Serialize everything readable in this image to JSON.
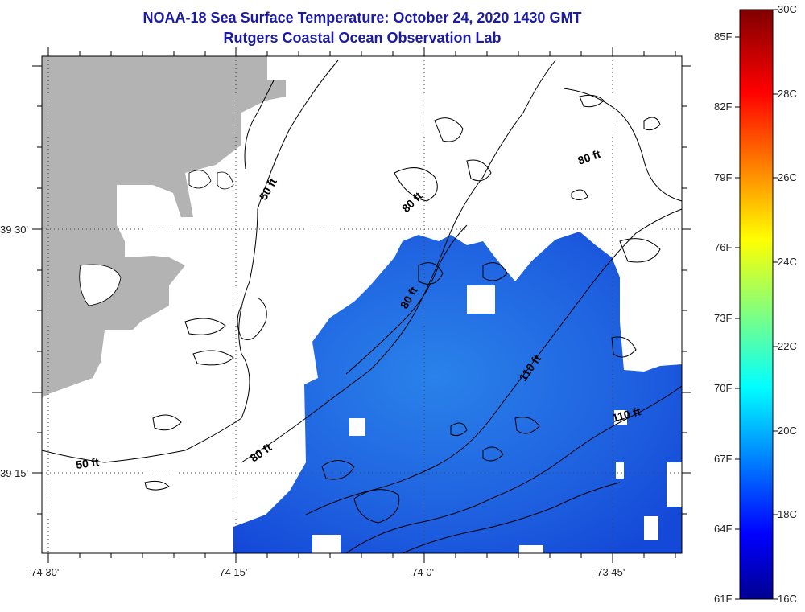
{
  "title": {
    "line1": "NOAA-18 Sea Surface Temperature:  October 24, 2020 1430 GMT",
    "line2": "Rutgers Coastal Ocean Observation Lab"
  },
  "map": {
    "x_labels": [
      "-74 30'",
      "-74 15'",
      "-74 0'",
      "-73 45'"
    ],
    "y_labels": [
      "39 30'",
      "39 15'"
    ],
    "contour_labels": [
      "50 ft",
      "50 ft",
      "80 ft",
      "80 ft",
      "80 ft",
      "80 ft",
      "110 ft",
      "110 ft"
    ],
    "land_color": "#b3b3b3",
    "grid": "dotted"
  },
  "colorbar": {
    "range_c": [
      16,
      30
    ],
    "celsius_labels": [
      "30C",
      "28C",
      "26C",
      "24C",
      "22C",
      "20C",
      "18C",
      "16C"
    ],
    "fahrenheit_labels": [
      "85F",
      "82F",
      "79F",
      "76F",
      "73F",
      "70F",
      "67F",
      "64F",
      "61F"
    ]
  }
}
